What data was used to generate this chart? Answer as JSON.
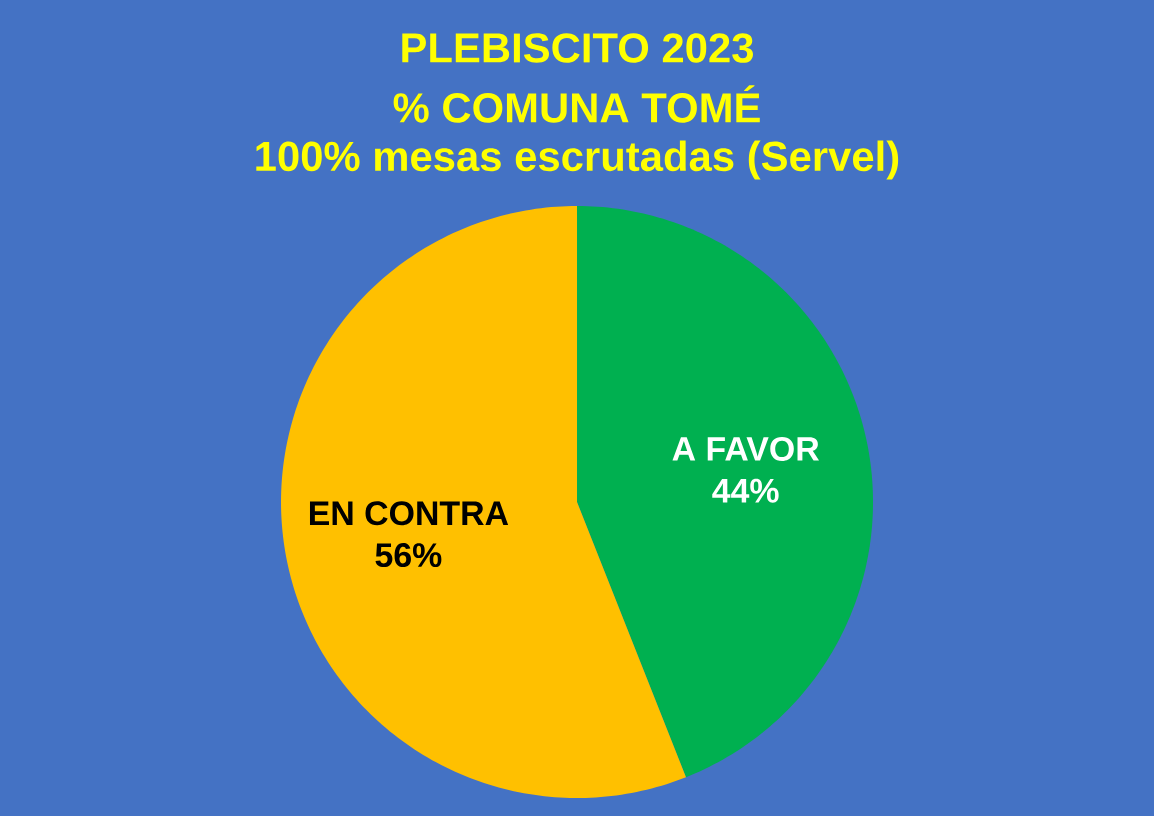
{
  "chart_data": {
    "type": "pie",
    "title": "PLEBISCITO 2023",
    "subtitle": "% COMUNA TOMÉ",
    "annotations": [
      "100% mesas escrutadas (Servel)"
    ],
    "categories": [
      "A FAVOR",
      "EN CONTRA"
    ],
    "values": [
      44,
      56
    ],
    "colors": [
      "#00b050",
      "#ffc000"
    ],
    "value_labels": [
      "44%",
      "56%"
    ]
  }
}
